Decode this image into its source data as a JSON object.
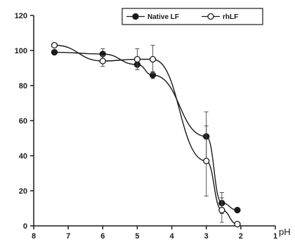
{
  "chart_data": {
    "type": "line",
    "xlabel": "pH",
    "ylabel": "",
    "xlim": [
      8,
      1
    ],
    "ylim": [
      0,
      120
    ],
    "x_ticks": [
      8,
      7,
      6,
      5,
      4,
      3,
      2,
      1
    ],
    "y_ticks": [
      0,
      20,
      40,
      60,
      80,
      100,
      120
    ],
    "x_reversed": true,
    "grid": false,
    "legend_position": "top-right",
    "series": [
      {
        "name": "Native LF",
        "marker": "filled-circle",
        "color": "#1a1a1a",
        "points": [
          {
            "x": 7.4,
            "y": 99,
            "err": 0
          },
          {
            "x": 6.0,
            "y": 98,
            "err": 3
          },
          {
            "x": 5.0,
            "y": 92,
            "err": 3
          },
          {
            "x": 4.55,
            "y": 86,
            "err": 2
          },
          {
            "x": 3.0,
            "y": 51,
            "err": 14
          },
          {
            "x": 2.55,
            "y": 13,
            "err": 6
          },
          {
            "x": 2.1,
            "y": 9,
            "err": 0
          }
        ]
      },
      {
        "name": "rhLF",
        "marker": "open-circle",
        "color": "#1a1a1a",
        "points": [
          {
            "x": 7.4,
            "y": 103,
            "err": 0
          },
          {
            "x": 6.0,
            "y": 94,
            "err": 3
          },
          {
            "x": 5.0,
            "y": 95,
            "err": 6
          },
          {
            "x": 4.55,
            "y": 95,
            "err": 8
          },
          {
            "x": 3.0,
            "y": 37,
            "err": 20
          },
          {
            "x": 2.55,
            "y": 9,
            "err": 7
          },
          {
            "x": 2.1,
            "y": 1,
            "err": 0
          }
        ]
      }
    ]
  }
}
